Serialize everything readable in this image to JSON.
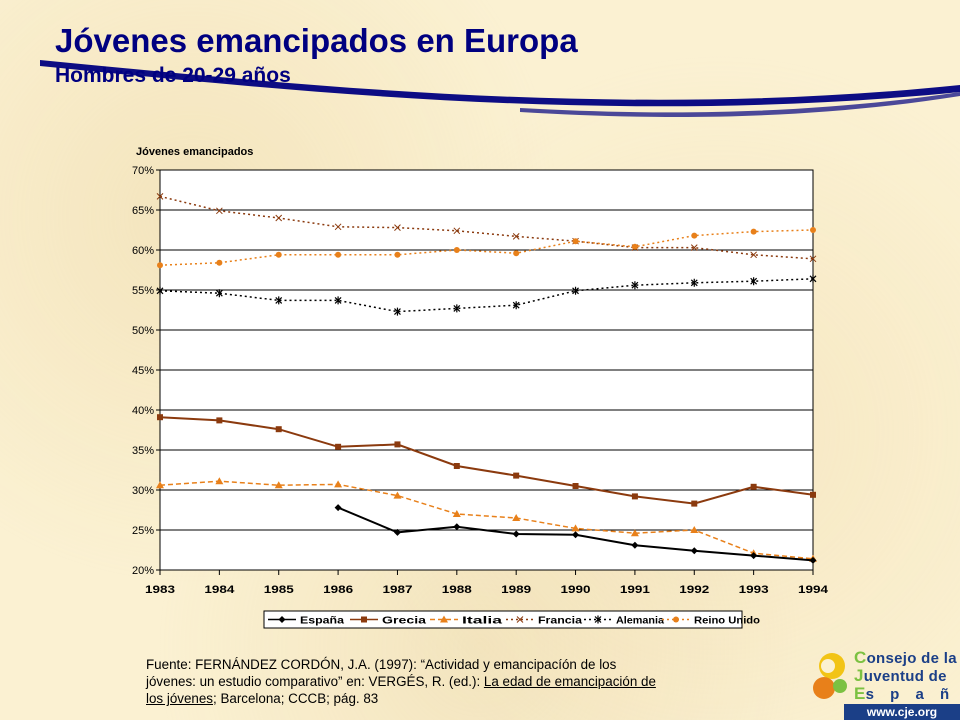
{
  "title": "Jóvenes emancipados en Europa",
  "subtitle": "Hombres de 20-29 años",
  "chart_data": {
    "type": "line",
    "ylabel": "Jóvenes emancipados",
    "xlabel": "",
    "ylim": [
      0.2,
      0.7
    ],
    "y_ticks": [
      "20%",
      "25%",
      "30%",
      "35%",
      "40%",
      "45%",
      "50%",
      "55%",
      "60%",
      "65%",
      "70%"
    ],
    "categories": [
      "1983",
      "1984",
      "1985",
      "1986",
      "1987",
      "1988",
      "1989",
      "1990",
      "1991",
      "1992",
      "1993",
      "1994"
    ],
    "grid": true,
    "legend_position": "bottom",
    "series": [
      {
        "name": "España",
        "color": "#000000",
        "style": "solid",
        "marker": "diamond",
        "values": [
          null,
          null,
          null,
          0.278,
          0.247,
          0.254,
          0.245,
          0.244,
          0.231,
          0.224,
          0.218,
          0.212
        ]
      },
      {
        "name": "Grecia",
        "color": "#8b3a0e",
        "style": "solid",
        "marker": "square",
        "values": [
          0.391,
          0.387,
          0.376,
          0.354,
          0.357,
          0.33,
          0.318,
          0.305,
          0.292,
          0.283,
          0.304,
          0.294
        ]
      },
      {
        "name": "Italia",
        "color": "#e8801a",
        "style": "dashed",
        "marker": "triangle",
        "values": [
          0.306,
          0.311,
          0.306,
          0.307,
          0.293,
          0.27,
          0.265,
          0.252,
          0.246,
          0.25,
          0.221,
          0.214
        ]
      },
      {
        "name": "Francia",
        "color": "#8b3a0e",
        "style": "dotted",
        "marker": "x",
        "values": [
          0.667,
          0.649,
          0.64,
          0.629,
          0.628,
          0.624,
          0.617,
          0.611,
          0.603,
          0.603,
          0.594,
          0.589
        ]
      },
      {
        "name": "Alemania",
        "color": "#000000",
        "style": "dotted",
        "marker": "star",
        "values": [
          0.549,
          0.546,
          0.537,
          0.537,
          0.523,
          0.527,
          0.531,
          0.549,
          0.556,
          0.559,
          0.561,
          0.564
        ]
      },
      {
        "name": "Reino Unido",
        "color": "#e8801a",
        "style": "dotted",
        "marker": "circle",
        "values": [
          0.581,
          0.584,
          0.594,
          0.594,
          0.594,
          0.6,
          0.596,
          0.611,
          0.604,
          0.618,
          0.623,
          0.625
        ]
      }
    ]
  },
  "source": {
    "line1": "Fuente: FERNÁNDEZ CORDÓN, J.A. (1997): “Actividad y emancipacíón de los",
    "line2a": "jóvenes: un estudio comparativo” en: VERGÉS, R. (ed.): ",
    "line2b": "La edad de emancipación de",
    "line3a": "los jóvenes",
    "line3b": "; Barcelona; CCCB; pág. 83"
  },
  "logo": {
    "line1_cap": "C",
    "line1_rest": "onsejo de la",
    "line2_cap": "J",
    "line2_rest": "uventud de",
    "line3_cap": "E",
    "line3_rest": "s p a ñ a",
    "url": "www.cje.org",
    "colors": {
      "blue": "#1b3f87",
      "green": "#7cc142",
      "yellow": "#f2c416",
      "orange": "#e8801a"
    }
  },
  "colors": {
    "title": "#000080",
    "background": "#fbf1d2",
    "swoosh": "#000080"
  }
}
